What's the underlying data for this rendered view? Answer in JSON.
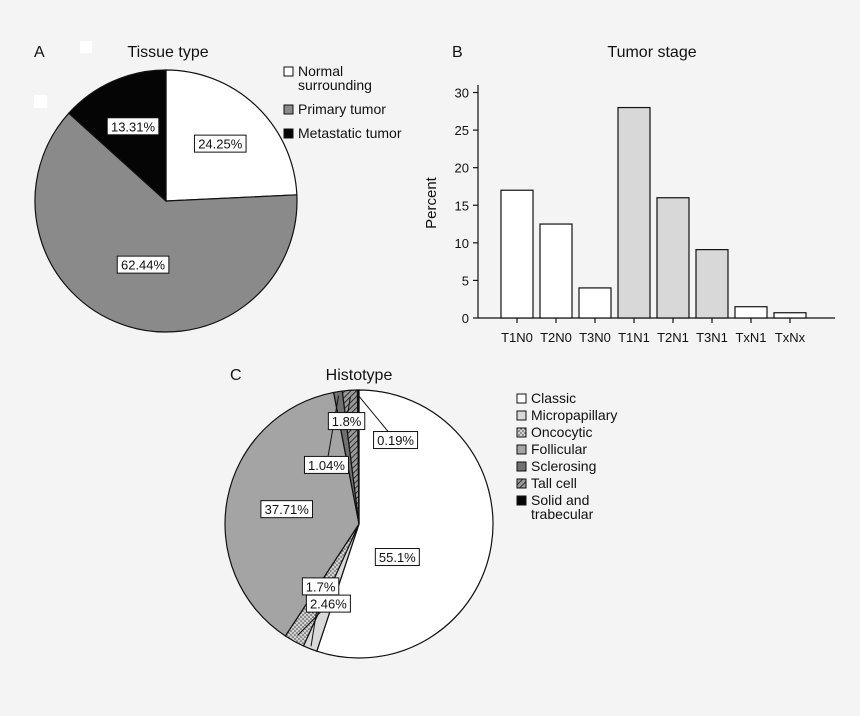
{
  "chart_data": [
    {
      "panel": "A",
      "type": "pie",
      "title": "Tissue type",
      "slices": [
        {
          "label": "Normal surrounding",
          "value": 24.25,
          "display": "24.25%",
          "color": "#ffffff",
          "legend_lines": [
            "Normal",
            "surrounding"
          ]
        },
        {
          "label": "Primary tumor",
          "value": 62.44,
          "display": "62.44%",
          "color": "#8a8a8a",
          "legend_lines": [
            "Primary tumor"
          ]
        },
        {
          "label": "Metastatic tumor",
          "value": 13.31,
          "display": "13.31%",
          "color": "#050505",
          "legend_lines": [
            "Metastatic tumor"
          ]
        }
      ],
      "legend": "right"
    },
    {
      "panel": "B",
      "type": "bar",
      "title": "Tumor stage",
      "ylabel": "Percent",
      "xlabel": "",
      "ylim": [
        0,
        31
      ],
      "yticks": [
        "0",
        "5",
        "10",
        "15",
        "20",
        "25",
        "30"
      ],
      "categories": [
        "T1N0",
        "T2N0",
        "T3N0",
        "T1N1",
        "T2N1",
        "T3N1",
        "TxN1",
        "TxNx"
      ],
      "values": [
        17,
        12.5,
        4,
        28,
        16,
        9.1,
        1.5,
        0.7
      ],
      "bar_colors": [
        "#ffffff",
        "#ffffff",
        "#ffffff",
        "#d8d8d8",
        "#d8d8d8",
        "#d8d8d8",
        "#ffffff",
        "#ffffff"
      ]
    },
    {
      "panel": "C",
      "type": "pie",
      "title": "Histotype",
      "slices": [
        {
          "label": "Classic",
          "value": 55.1,
          "display": "55.1%",
          "color": "#ffffff",
          "pattern": "none",
          "legend_lines": [
            "Classic"
          ]
        },
        {
          "label": "Micropapillary",
          "value": 1.7,
          "display": "1.7%",
          "color": "#d9d9d9",
          "pattern": "none",
          "legend_lines": [
            "Micropapillary"
          ]
        },
        {
          "label": "Oncocytic",
          "value": 2.46,
          "display": "2.46%",
          "color": "#bdbdbd",
          "pattern": "dots",
          "legend_lines": [
            "Oncocytic"
          ]
        },
        {
          "label": "Follicular",
          "value": 37.71,
          "display": "37.71%",
          "color": "#a4a4a4",
          "pattern": "none",
          "legend_lines": [
            "Follicular"
          ]
        },
        {
          "label": "Sclerosing",
          "value": 1.04,
          "display": "1.04%",
          "color": "#707070",
          "pattern": "none",
          "legend_lines": [
            "Sclerosing"
          ]
        },
        {
          "label": "Tall cell",
          "value": 1.8,
          "display": "1.8%",
          "color": "#666666",
          "pattern": "hatch",
          "legend_lines": [
            "Tall cell"
          ]
        },
        {
          "label": "Solid and trabecular",
          "value": 0.19,
          "display": "0.19%",
          "color": "#050505",
          "pattern": "none",
          "legend_lines": [
            "Solid and",
            "trabecular"
          ]
        }
      ],
      "legend": "right"
    }
  ]
}
